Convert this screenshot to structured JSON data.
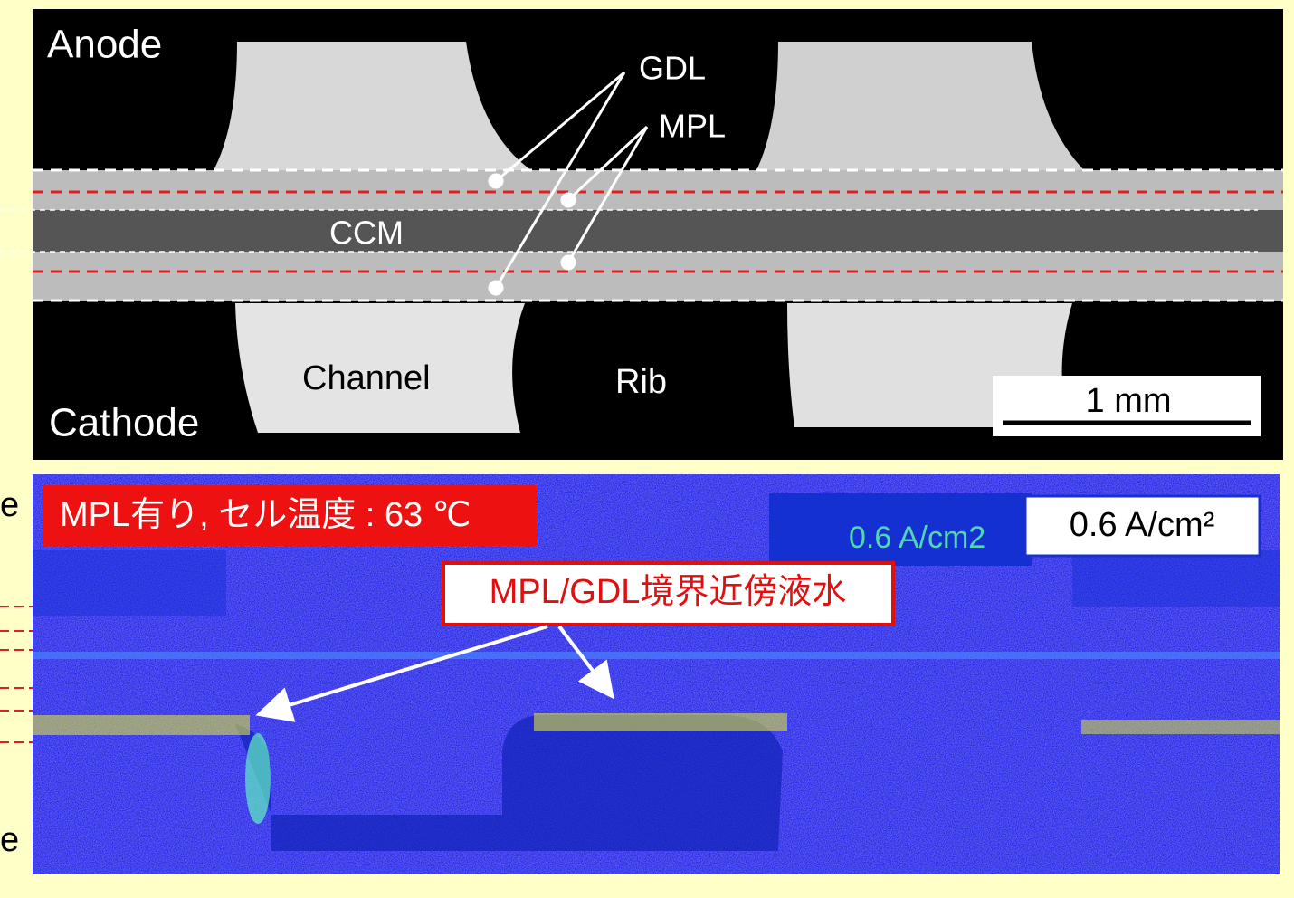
{
  "top_panel": {
    "anode": "Anode",
    "gdl": "GDL",
    "mpl": "MPL",
    "ccm": "CCM",
    "channel": "Channel",
    "rib": "Rib",
    "cathode": "Cathode",
    "scale_bar": "1 mm"
  },
  "bottom_panel": {
    "condition": "MPL有り, セル温度 : 63 ℃",
    "faint_label": "0.6 A/cm2",
    "current_density": "0.6 A/cm²",
    "annotation": "MPL/GDL境界近傍液水"
  },
  "left_edge": [
    "e",
    "e"
  ]
}
